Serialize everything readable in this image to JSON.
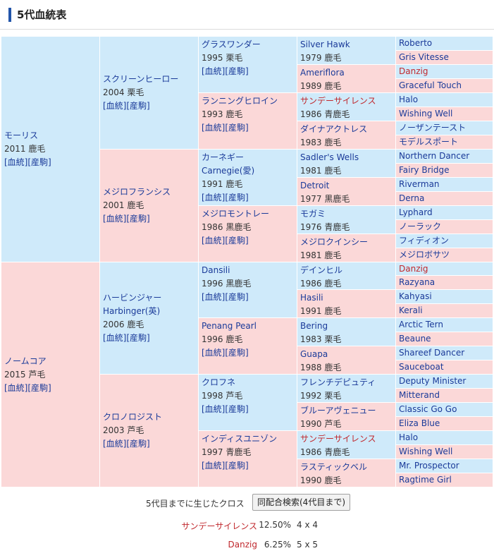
{
  "header": {
    "title": "5代血統表"
  },
  "link_labels": {
    "pedigree": "[血統]",
    "breeding": "[産駒]"
  },
  "g1": [
    {
      "name": "モーリス",
      "info": "2011 鹿毛"
    },
    {
      "name": "ノームコア",
      "info": "2015 芦毛"
    }
  ],
  "g2": [
    {
      "name": "スクリーンヒーロー",
      "info": "2004 栗毛"
    },
    {
      "name": "メジロフランシス",
      "info": "2001 鹿毛"
    },
    {
      "name": "ハービンジャー",
      "name2": "Harbinger(英)",
      "info": "2006 鹿毛"
    },
    {
      "name": "クロノロジスト",
      "info": "2003 芦毛"
    }
  ],
  "g3": [
    {
      "name": "グラスワンダー",
      "info": "1995 栗毛"
    },
    {
      "name": "ランニングヒロイン",
      "info": "1993 鹿毛"
    },
    {
      "name": "カーネギー",
      "name2": "Carnegie(愛)",
      "info": "1991 鹿毛"
    },
    {
      "name": "メジロモントレー",
      "info": "1986 黒鹿毛"
    },
    {
      "name": "Dansili",
      "info": "1996 黒鹿毛"
    },
    {
      "name": "Penang Pearl",
      "info": "1996 鹿毛"
    },
    {
      "name": "クロフネ",
      "info": "1998 芦毛"
    },
    {
      "name": "インディスユニゾン",
      "info": "1997 青鹿毛"
    }
  ],
  "g4": [
    {
      "name": "Silver Hawk",
      "info": "1979 鹿毛",
      "red": false
    },
    {
      "name": "Ameriflora",
      "info": "1989 鹿毛",
      "red": false
    },
    {
      "name": "サンデーサイレンス",
      "info": "1986 青鹿毛",
      "red": true
    },
    {
      "name": "ダイナアクトレス",
      "info": "1983 鹿毛",
      "red": false
    },
    {
      "name": "Sadler's Wells",
      "info": "1981 鹿毛",
      "red": false
    },
    {
      "name": "Detroit",
      "info": "1977 黒鹿毛",
      "red": false
    },
    {
      "name": "モガミ",
      "info": "1976 青鹿毛",
      "red": false
    },
    {
      "name": "メジロクインシー",
      "info": "1981 鹿毛",
      "red": false
    },
    {
      "name": "デインヒル",
      "info": "1986 鹿毛",
      "red": false
    },
    {
      "name": "Hasili",
      "info": "1991 鹿毛",
      "red": false
    },
    {
      "name": "Bering",
      "info": "1983 栗毛",
      "red": false
    },
    {
      "name": "Guapa",
      "info": "1988 鹿毛",
      "red": false
    },
    {
      "name": "フレンチデピュティ",
      "info": "1992 栗毛",
      "red": false
    },
    {
      "name": "ブルーアヴェニュー",
      "info": "1990 芦毛",
      "red": false
    },
    {
      "name": "サンデーサイレンス",
      "info": "1986 青鹿毛",
      "red": true
    },
    {
      "name": "ラスティックベル",
      "info": "1990 鹿毛",
      "red": false
    }
  ],
  "g5": [
    {
      "name": "Roberto",
      "red": false
    },
    {
      "name": "Gris Vitesse",
      "red": false
    },
    {
      "name": "Danzig",
      "red": true
    },
    {
      "name": "Graceful Touch",
      "red": false
    },
    {
      "name": "Halo",
      "red": false
    },
    {
      "name": "Wishing Well",
      "red": false
    },
    {
      "name": "ノーザンテースト",
      "red": false
    },
    {
      "name": "モデルスポート",
      "red": false
    },
    {
      "name": "Northern Dancer",
      "red": false
    },
    {
      "name": "Fairy Bridge",
      "red": false
    },
    {
      "name": "Riverman",
      "red": false
    },
    {
      "name": "Derna",
      "red": false
    },
    {
      "name": "Lyphard",
      "red": false
    },
    {
      "name": "ノーラック",
      "red": false
    },
    {
      "name": "フィディオン",
      "red": false
    },
    {
      "name": "メジロボサツ",
      "red": false
    },
    {
      "name": "Danzig",
      "red": true
    },
    {
      "name": "Razyana",
      "red": false
    },
    {
      "name": "Kahyasi",
      "red": false
    },
    {
      "name": "Kerali",
      "red": false
    },
    {
      "name": "Arctic Tern",
      "red": false
    },
    {
      "name": "Beaune",
      "red": false
    },
    {
      "name": "Shareef Dancer",
      "red": false
    },
    {
      "name": "Sauceboat",
      "red": false
    },
    {
      "name": "Deputy Minister",
      "red": false
    },
    {
      "name": "Mitterand",
      "red": false
    },
    {
      "name": "Classic Go Go",
      "red": false
    },
    {
      "name": "Eliza Blue",
      "red": false
    },
    {
      "name": "Halo",
      "red": false
    },
    {
      "name": "Wishing Well",
      "red": false
    },
    {
      "name": "Mr. Prospector",
      "red": false
    },
    {
      "name": "Ragtime Girl",
      "red": false
    }
  ],
  "cross": {
    "label": "5代目までに生じたクロス",
    "button_label": "同配合検索(4代目まで)",
    "rows": [
      {
        "name": "サンデーサイレンス",
        "percent": "12.50%",
        "generations": "4 x 4"
      },
      {
        "name": "Danzig",
        "percent": "6.25%",
        "generations": "5 x 5"
      }
    ]
  },
  "colors": {
    "sire_cell": "#cfeafa",
    "dam_cell": "#fbd8d8",
    "link": "#1a3a99",
    "cross_highlight": "#c0282d",
    "header_accent": "#2255aa"
  }
}
